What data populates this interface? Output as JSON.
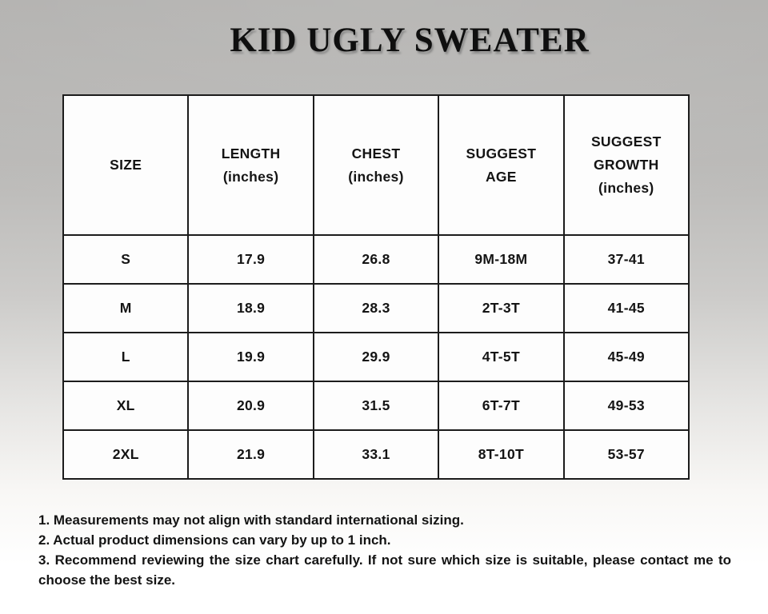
{
  "page": {
    "title": "KID UGLY SWEATER"
  },
  "table": {
    "headers": [
      {
        "lines": [
          "SIZE"
        ]
      },
      {
        "lines": [
          "LENGTH",
          "(inches)"
        ]
      },
      {
        "lines": [
          "CHEST",
          "(inches)"
        ]
      },
      {
        "lines": [
          "SUGGEST",
          "AGE"
        ]
      },
      {
        "lines": [
          "SUGGEST",
          "GROWTH",
          "(inches)"
        ]
      }
    ],
    "rows": [
      [
        "S",
        "17.9",
        "26.8",
        "9M-18M",
        "37-41"
      ],
      [
        "M",
        "18.9",
        "28.3",
        "2T-3T",
        "41-45"
      ],
      [
        "L",
        "19.9",
        "29.9",
        "4T-5T",
        "45-49"
      ],
      [
        "XL",
        "20.9",
        "31.5",
        "6T-7T",
        "49-53"
      ],
      [
        "2XL",
        "21.9",
        "33.1",
        "8T-10T",
        "53-57"
      ]
    ]
  },
  "notes": [
    "1. Measurements may not align with standard international sizing.",
    "2. Actual product dimensions can vary by up to 1 inch.",
    "3. Recommend reviewing the size chart carefully. If not sure which size is suitable, please contact me to choose the best size."
  ],
  "colors": {
    "text": "#141414",
    "table_border": "#1c1c1c",
    "cell_background": "#fdfdfd",
    "background_top": "#b1b0ae",
    "background_bottom": "#ffffff"
  }
}
